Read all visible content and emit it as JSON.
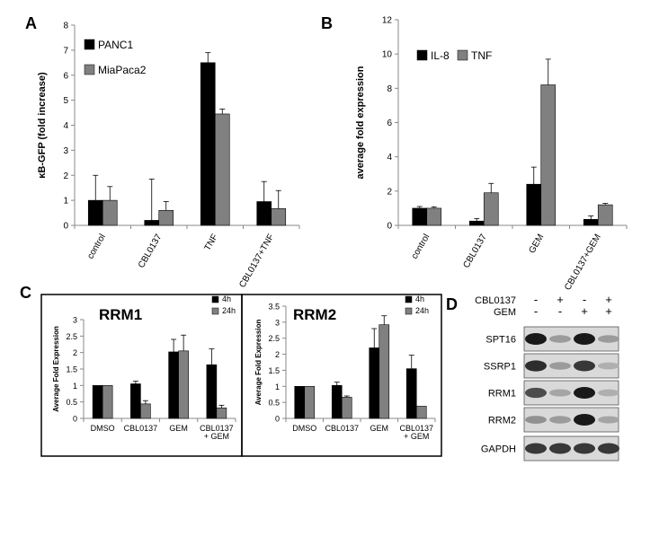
{
  "panels": {
    "a": "A",
    "b": "B",
    "c": "C",
    "d": "D"
  },
  "chart_data": [
    {
      "id": "A",
      "type": "bar",
      "ylabel": "κB-GFP (fold increase)",
      "ylim": [
        0,
        8
      ],
      "yticks": [
        0,
        1,
        2,
        3,
        4,
        5,
        6,
        7,
        8
      ],
      "categories": [
        "control",
        "CBL0137",
        "TNF",
        "CBL0137+TNF"
      ],
      "series": [
        {
          "name": "PANC1",
          "color": "#000000",
          "values": [
            1.0,
            0.2,
            6.5,
            0.95
          ],
          "errors": [
            1.0,
            1.65,
            0.4,
            0.8
          ]
        },
        {
          "name": "MiaPaca2",
          "color": "#808080",
          "values": [
            1.0,
            0.6,
            4.45,
            0.67
          ],
          "errors": [
            0.55,
            0.35,
            0.2,
            0.72
          ]
        }
      ],
      "legend": "top-left"
    },
    {
      "id": "B",
      "type": "bar",
      "ylabel": "average fold expression",
      "ylim": [
        0,
        12
      ],
      "yticks": [
        0,
        2,
        4,
        6,
        8,
        10,
        12
      ],
      "categories": [
        "control",
        "CBL0137",
        "GEM",
        "CBL0137+GEM"
      ],
      "series": [
        {
          "name": "IL-8",
          "color": "#000000",
          "values": [
            1.0,
            0.25,
            2.4,
            0.35
          ],
          "errors": [
            0.1,
            0.15,
            1.0,
            0.2
          ]
        },
        {
          "name": "TNF",
          "color": "#808080",
          "values": [
            1.0,
            1.9,
            8.2,
            1.2
          ],
          "errors": [
            0.08,
            0.55,
            1.5,
            0.08
          ]
        }
      ],
      "legend": "top-left"
    },
    {
      "id": "C-RRM1",
      "type": "bar",
      "title": "RRM1",
      "ylabel": "Average Fold Expression",
      "ylim": [
        0,
        3
      ],
      "yticks": [
        0,
        0.5,
        1,
        1.5,
        2,
        2.5,
        3
      ],
      "categories": [
        "DMSO",
        "CBL0137",
        "GEM",
        "CBL0137\n+ GEM"
      ],
      "series": [
        {
          "name": "4h",
          "color": "#000000",
          "values": [
            1.0,
            1.05,
            2.02,
            1.63
          ],
          "errors": [
            0.0,
            0.08,
            0.38,
            0.48
          ]
        },
        {
          "name": "24h",
          "color": "#808080",
          "values": [
            1.0,
            0.44,
            2.05,
            0.32
          ],
          "errors": [
            0.0,
            0.1,
            0.48,
            0.08
          ]
        }
      ],
      "legend": "top-right"
    },
    {
      "id": "C-RRM2",
      "type": "bar",
      "title": "RRM2",
      "ylabel": "Average Fold Expression",
      "ylim": [
        0,
        3.5
      ],
      "yticks": [
        0,
        0.5,
        1,
        1.5,
        2,
        2.5,
        3,
        3.5
      ],
      "categories": [
        "DMSO",
        "CBL0137",
        "GEM",
        "CBL0137\n+ GEM"
      ],
      "series": [
        {
          "name": "4h",
          "color": "#000000",
          "values": [
            1.0,
            1.03,
            2.2,
            1.55
          ],
          "errors": [
            0.0,
            0.1,
            0.6,
            0.42
          ]
        },
        {
          "name": "24h",
          "color": "#808080",
          "values": [
            1.0,
            0.66,
            2.92,
            0.38
          ],
          "errors": [
            0.0,
            0.04,
            0.28,
            0.0
          ]
        }
      ],
      "legend": "top-right"
    }
  ],
  "blot": {
    "conditions": [
      {
        "label": "CBL0137",
        "signs": [
          "-",
          "+",
          "-",
          "+"
        ]
      },
      {
        "label": "GEM",
        "signs": [
          "-",
          "-",
          "+",
          "+"
        ]
      }
    ],
    "rows": [
      {
        "label": "SPT16",
        "intensity": [
          1.0,
          0.35,
          1.0,
          0.35
        ]
      },
      {
        "label": "SSRP1",
        "intensity": [
          0.9,
          0.35,
          0.85,
          0.25
        ]
      },
      {
        "label": "RRM1",
        "intensity": [
          0.75,
          0.3,
          1.0,
          0.25
        ]
      },
      {
        "label": "RRM2",
        "intensity": [
          0.4,
          0.35,
          1.0,
          0.3
        ]
      },
      {
        "label": "GAPDH",
        "intensity": [
          0.85,
          0.85,
          0.85,
          0.85
        ]
      }
    ]
  }
}
